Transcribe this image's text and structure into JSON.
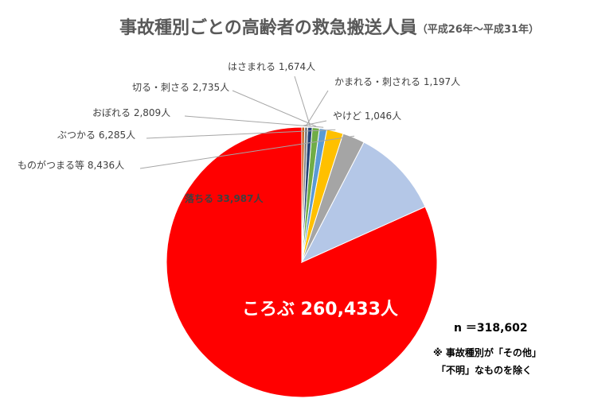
{
  "chart_data": {
    "type": "pie",
    "title": "事故種別ごとの高齢者の救急搬送人員",
    "subtitle": "（平成26年～平成31年）",
    "unit": "人",
    "slices": [
      {
        "label": "ころぶ",
        "value_text": "260,433人",
        "value": 260433,
        "color": "#FF0000"
      },
      {
        "label": "落ちる",
        "value_text": "33,987人",
        "value": 33987,
        "color": "#B4C7E7"
      },
      {
        "label": "ものがつまる等",
        "value_text": "8,436人",
        "value": 8436,
        "color": "#A5A5A5"
      },
      {
        "label": "ぶつかる",
        "value_text": "6,285人",
        "value": 6285,
        "color": "#FFC000"
      },
      {
        "label": "おぼれる",
        "value_text": "2,809人",
        "value": 2809,
        "color": "#5B9BD5"
      },
      {
        "label": "切る・刺さる",
        "value_text": "2,735人",
        "value": 2735,
        "color": "#70AD47"
      },
      {
        "label": "はさまれる",
        "value_text": "1,674人",
        "value": 1674,
        "color": "#264478"
      },
      {
        "label": "かまれる・刺される",
        "value_text": "1,197人",
        "value": 1197,
        "color": "#7F7F7F"
      },
      {
        "label": "やけど",
        "value_text": "1,046人",
        "value": 1046,
        "color": "#C55A11"
      }
    ],
    "total_label": "n ＝318,602",
    "notes": [
      "※ 事故種別が「その他」",
      "「不明」なものを除く"
    ]
  }
}
